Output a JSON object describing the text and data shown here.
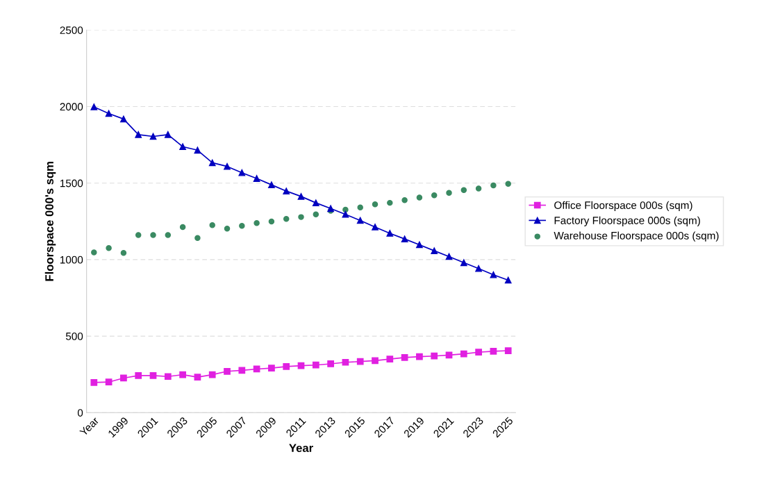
{
  "chart_data": {
    "type": "line",
    "xlabel": "Year",
    "ylabel": "Floorspace 000's sqm",
    "categories": [
      "Year",
      null,
      "1999",
      null,
      "2001",
      null,
      "2003",
      null,
      "2005",
      null,
      "2007",
      null,
      "2009",
      null,
      "2011",
      null,
      "2013",
      null,
      "2015",
      null,
      "2017",
      null,
      "2019",
      null,
      "2021",
      null,
      "2023",
      null,
      "2025"
    ],
    "series": [
      {
        "name": "Office Floorspace 000s (sqm)",
        "marker": "square",
        "color": "#e020e0",
        "values": [
          197,
          200,
          226,
          242,
          242,
          236,
          248,
          232,
          248,
          270,
          276,
          285,
          291,
          301,
          307,
          311,
          319,
          329,
          334,
          340,
          350,
          360,
          366,
          370,
          376,
          384,
          395,
          401,
          405
        ]
      },
      {
        "name": "Factory Floorspace 000s (sqm)",
        "marker": "triangle",
        "color": "#0000c0",
        "values": [
          1998,
          1955,
          1919,
          1817,
          1805,
          1817,
          1738,
          1715,
          1633,
          1609,
          1568,
          1530,
          1489,
          1448,
          1413,
          1371,
          1334,
          1296,
          1256,
          1213,
          1172,
          1135,
          1097,
          1058,
          1020,
          980,
          942,
          901,
          866
        ]
      },
      {
        "name": "Warehouse Floorspace 000s (sqm)",
        "type": "scatter",
        "marker": "circle",
        "color": "#3a8a62",
        "values": [
          1047,
          1075,
          1044,
          1161,
          1161,
          1161,
          1213,
          1141,
          1225,
          1203,
          1221,
          1239,
          1249,
          1266,
          1278,
          1296,
          1319,
          1326,
          1341,
          1361,
          1371,
          1389,
          1406,
          1420,
          1436,
          1454,
          1465,
          1485,
          1495
        ]
      }
    ],
    "ylim": [
      0,
      2500
    ],
    "yticks": [
      0,
      500,
      1000,
      1500,
      2000,
      2500
    ],
    "grid": "y",
    "legend": "right"
  }
}
